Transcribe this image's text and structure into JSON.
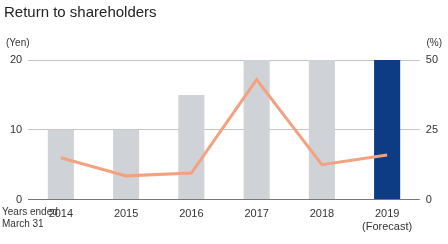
{
  "chart_data": {
    "type": "bar",
    "title": "Return to shareholders",
    "x_label": "Years ended\nMarch 31",
    "y_label": "(Yen)",
    "y2_label": "(%)",
    "categories": [
      "2014",
      "2015",
      "2016",
      "2017",
      "2018",
      "2019\n(Forecast)"
    ],
    "series": [
      {
        "type": "bar",
        "colors": [
          "#cfd2d6",
          "#cfd2d6",
          "#cfd2d6",
          "#cfd2d6",
          "#cfd2d6",
          "#0d3b84"
        ],
        "values": [
          10,
          10,
          15,
          20,
          20,
          20
        ]
      },
      {
        "type": "line",
        "color": "#f2a27f",
        "axis": "y2",
        "values": [
          15,
          8.5,
          9.5,
          43,
          12.5,
          16
        ]
      }
    ],
    "ylim": [
      0,
      20
    ],
    "yticks": [
      0,
      10,
      20
    ],
    "y2lim": [
      0,
      50
    ],
    "y2ticks": [
      0,
      25,
      50
    ],
    "grid": true
  }
}
